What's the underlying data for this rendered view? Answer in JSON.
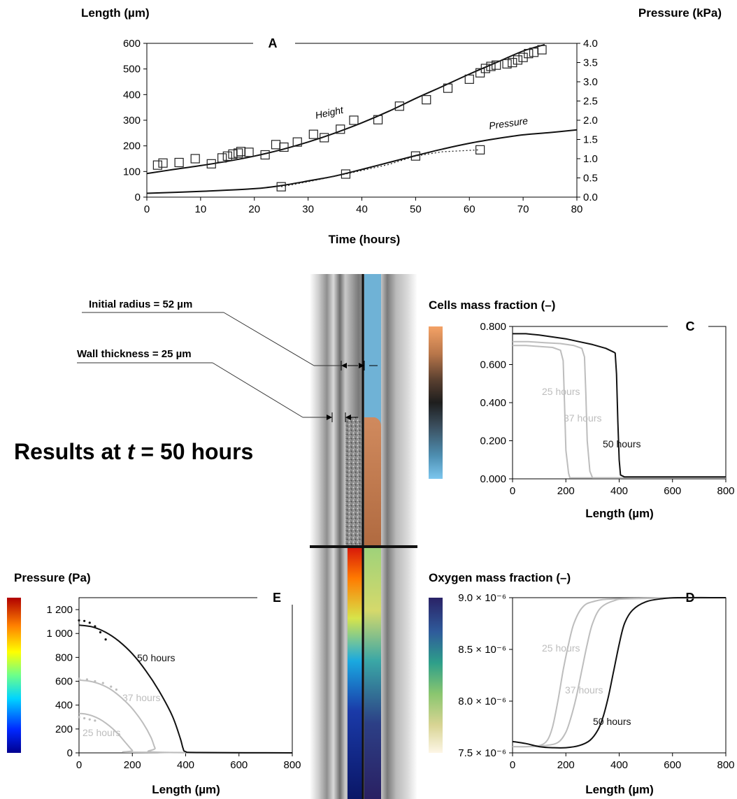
{
  "results_title": {
    "prefix": "Results at ",
    "t": "t",
    "suffix": " = 50 hours"
  },
  "annotations": {
    "initial_radius": "Initial radius = 52 µm",
    "wall_thickness": "Wall thickness = 25 µm"
  },
  "colors": {
    "grey": "#bdbdbd",
    "black": "#111111",
    "water_blue": "#6fb2d6"
  },
  "chart_data": [
    {
      "panel": "A",
      "type": "line",
      "xlabel": "Time (hours)",
      "ylabel_left": "Length (µm)",
      "ylabel_right": "Pressure (kPa)",
      "xlim": [
        0,
        80
      ],
      "ylim_left": [
        0,
        600
      ],
      "ylim_right": [
        0,
        4.0
      ],
      "xticks": [
        "0",
        "10",
        "20",
        "30",
        "40",
        "50",
        "60",
        "70",
        "80"
      ],
      "yticks_left": [
        "0",
        "100",
        "200",
        "300",
        "400",
        "500",
        "600"
      ],
      "yticks_right": [
        "0.0",
        "0.5",
        "1.0",
        "1.5",
        "2.0",
        "2.5",
        "3.0",
        "3.5",
        "4.0"
      ],
      "series": [
        {
          "name": "Height",
          "axis": "left",
          "style": "line",
          "x": [
            0,
            5,
            10,
            15,
            20,
            25,
            30,
            35,
            40,
            45,
            50,
            55,
            60,
            65,
            70,
            74
          ],
          "y": [
            92,
            108,
            123,
            140,
            160,
            185,
            215,
            250,
            290,
            335,
            385,
            432,
            480,
            525,
            570,
            595
          ]
        },
        {
          "name": "Pressure",
          "axis": "right",
          "style": "line",
          "x": [
            0,
            10,
            20,
            25,
            30,
            35,
            40,
            45,
            50,
            55,
            60,
            65,
            70,
            75,
            80
          ],
          "y": [
            0.1,
            0.15,
            0.22,
            0.3,
            0.42,
            0.55,
            0.72,
            0.9,
            1.08,
            1.25,
            1.4,
            1.52,
            1.62,
            1.68,
            1.75
          ]
        },
        {
          "name": "",
          "axis": "right",
          "style": "dotted",
          "x": [
            25,
            30,
            37,
            45,
            50,
            55,
            62
          ],
          "y": [
            0.27,
            0.4,
            0.6,
            0.85,
            1.07,
            1.18,
            1.23
          ]
        },
        {
          "name": "",
          "axis": "left",
          "style": "markers",
          "x": [
            2,
            3,
            6,
            9,
            12,
            14,
            15,
            16,
            17,
            17.5,
            19,
            22,
            24,
            25.5,
            28,
            31,
            33,
            36,
            38.5,
            43,
            47,
            52,
            56,
            60,
            62,
            63,
            64,
            65,
            67,
            68,
            69,
            70,
            71,
            72,
            73.5
          ],
          "y": [
            125,
            133,
            135,
            150,
            130,
            153,
            160,
            168,
            172,
            178,
            175,
            165,
            205,
            195,
            215,
            245,
            232,
            265,
            300,
            302,
            355,
            380,
            425,
            460,
            485,
            502,
            510,
            515,
            520,
            525,
            535,
            545,
            560,
            565,
            575
          ]
        },
        {
          "name": "",
          "axis": "right",
          "style": "markers",
          "x": [
            25,
            37,
            50,
            62
          ],
          "y": [
            0.27,
            0.6,
            1.07,
            1.23
          ]
        }
      ]
    },
    {
      "panel": "C",
      "type": "line",
      "xlabel": "Length (µm)",
      "ylabel": "Cells mass fraction (–)",
      "xlim": [
        0,
        800
      ],
      "ylim": [
        0,
        0.8
      ],
      "xticks": [
        "0",
        "200",
        "400",
        "600",
        "800"
      ],
      "yticks": [
        "0.000",
        "0.200",
        "0.400",
        "0.600",
        "0.800"
      ],
      "series": [
        {
          "name": "25 hours",
          "x": [
            0,
            50,
            100,
            150,
            180,
            190,
            195,
            200,
            210,
            215,
            300,
            800
          ],
          "y": [
            0.7,
            0.7,
            0.695,
            0.69,
            0.675,
            0.62,
            0.4,
            0.15,
            0.03,
            0.005,
            0.005,
            0.005
          ]
        },
        {
          "name": "37 hours",
          "x": [
            0,
            60,
            120,
            180,
            230,
            260,
            270,
            275,
            280,
            290,
            300,
            800
          ],
          "y": [
            0.72,
            0.72,
            0.715,
            0.71,
            0.7,
            0.685,
            0.64,
            0.45,
            0.2,
            0.04,
            0.005,
            0.005
          ]
        },
        {
          "name": "50 hours",
          "x": [
            0,
            50,
            100,
            150,
            200,
            250,
            300,
            350,
            380,
            385,
            390,
            395,
            400,
            405,
            420,
            800
          ],
          "y": [
            0.762,
            0.762,
            0.755,
            0.745,
            0.735,
            0.72,
            0.705,
            0.685,
            0.665,
            0.66,
            0.55,
            0.3,
            0.1,
            0.02,
            0.01,
            0.01
          ]
        }
      ]
    },
    {
      "panel": "D",
      "type": "line",
      "xlabel": "Length (µm)",
      "ylabel": "Oxygen mass fraction (–)",
      "xlim": [
        0,
        800
      ],
      "ylim": [
        7.5e-06,
        9e-06
      ],
      "xticks": [
        "0",
        "200",
        "400",
        "600",
        "800"
      ],
      "yticks": [
        "7.5 × 10⁻⁶",
        "8.0 × 10⁻⁶",
        "8.5 × 10⁻⁶",
        "9.0 × 10⁻⁶"
      ],
      "series": [
        {
          "name": "25 hours",
          "x": [
            0,
            50,
            100,
            130,
            150,
            170,
            190,
            210,
            230,
            260,
            300,
            400,
            800
          ],
          "y": [
            7.56e-06,
            7.56e-06,
            7.57e-06,
            7.62e-06,
            7.75e-06,
            8e-06,
            8.3e-06,
            8.55e-06,
            8.75e-06,
            8.9e-06,
            8.96e-06,
            8.99e-06,
            9e-06
          ]
        },
        {
          "name": "37 hours",
          "x": [
            0,
            60,
            120,
            170,
            200,
            220,
            240,
            260,
            280,
            300,
            330,
            380,
            450,
            800
          ],
          "y": [
            7.56e-06,
            7.56e-06,
            7.57e-06,
            7.6e-06,
            7.7e-06,
            7.85e-06,
            8.05e-06,
            8.3e-06,
            8.55e-06,
            8.75e-06,
            8.9e-06,
            8.97e-06,
            8.99e-06,
            9e-06
          ]
        },
        {
          "name": "50 hours",
          "x": [
            0,
            50,
            100,
            150,
            200,
            250,
            290,
            320,
            340,
            360,
            380,
            400,
            420,
            450,
            500,
            560,
            620,
            800
          ],
          "y": [
            7.61e-06,
            7.59e-06,
            7.56e-06,
            7.55e-06,
            7.55e-06,
            7.57e-06,
            7.62e-06,
            7.72e-06,
            7.85e-06,
            8.05e-06,
            8.3e-06,
            8.55e-06,
            8.75e-06,
            8.88e-06,
            8.96e-06,
            8.99e-06,
            9e-06,
            9e-06
          ]
        }
      ]
    },
    {
      "panel": "E",
      "type": "line",
      "xlabel": "Length (µm)",
      "ylabel": "Pressure (Pa)",
      "xlim": [
        0,
        800
      ],
      "ylim": [
        0,
        1300
      ],
      "xticks": [
        "0",
        "200",
        "400",
        "600",
        "800"
      ],
      "yticks": [
        "0",
        "200",
        "400",
        "600",
        "800",
        "1 000",
        "1 200"
      ],
      "series": [
        {
          "name": "25 hours",
          "x": [
            0,
            25,
            50,
            75,
            100,
            125,
            150,
            175,
            200,
            210,
            800
          ],
          "y": [
            330,
            325,
            310,
            285,
            250,
            205,
            150,
            85,
            20,
            5,
            0
          ]
        },
        {
          "name": "37 hours",
          "x": [
            0,
            40,
            80,
            120,
            160,
            200,
            240,
            270,
            285,
            300,
            800
          ],
          "y": [
            610,
            600,
            575,
            530,
            460,
            370,
            250,
            130,
            40,
            5,
            0
          ]
        },
        {
          "name": "50 hours",
          "x": [
            0,
            50,
            100,
            150,
            200,
            250,
            300,
            350,
            380,
            390,
            400,
            450,
            800
          ],
          "y": [
            1070,
            1055,
            1010,
            935,
            830,
            690,
            520,
            310,
            120,
            40,
            10,
            3,
            0
          ]
        },
        {
          "name": "",
          "style": "dotted",
          "x": [
            0,
            20,
            40,
            60,
            80,
            100
          ],
          "y": [
            1110,
            1105,
            1090,
            1060,
            1010,
            950
          ]
        },
        {
          "name": "",
          "style": "dotted",
          "x": [
            0,
            30,
            60,
            90,
            120,
            140
          ],
          "y": [
            620,
            615,
            600,
            585,
            555,
            530
          ]
        },
        {
          "name": "",
          "style": "dotted",
          "x": [
            0,
            20,
            40,
            60
          ],
          "y": [
            300,
            290,
            280,
            270
          ]
        }
      ]
    }
  ]
}
